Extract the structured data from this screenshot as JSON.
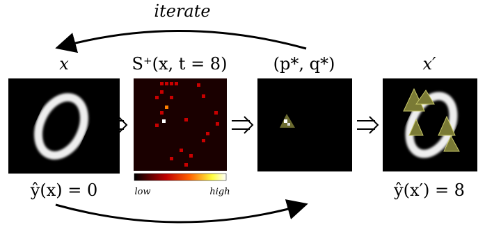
{
  "loop_label": "iterate",
  "panels": [
    {
      "label": "x",
      "caption": "ŷ(x) = 0"
    },
    {
      "label": "S⁺(x, t = 8)",
      "colorbar": {
        "low": "low",
        "high": "high"
      }
    },
    {
      "label": "(p*, q*)"
    },
    {
      "label": "x′",
      "caption": "ŷ(x′) = 8"
    }
  ]
}
